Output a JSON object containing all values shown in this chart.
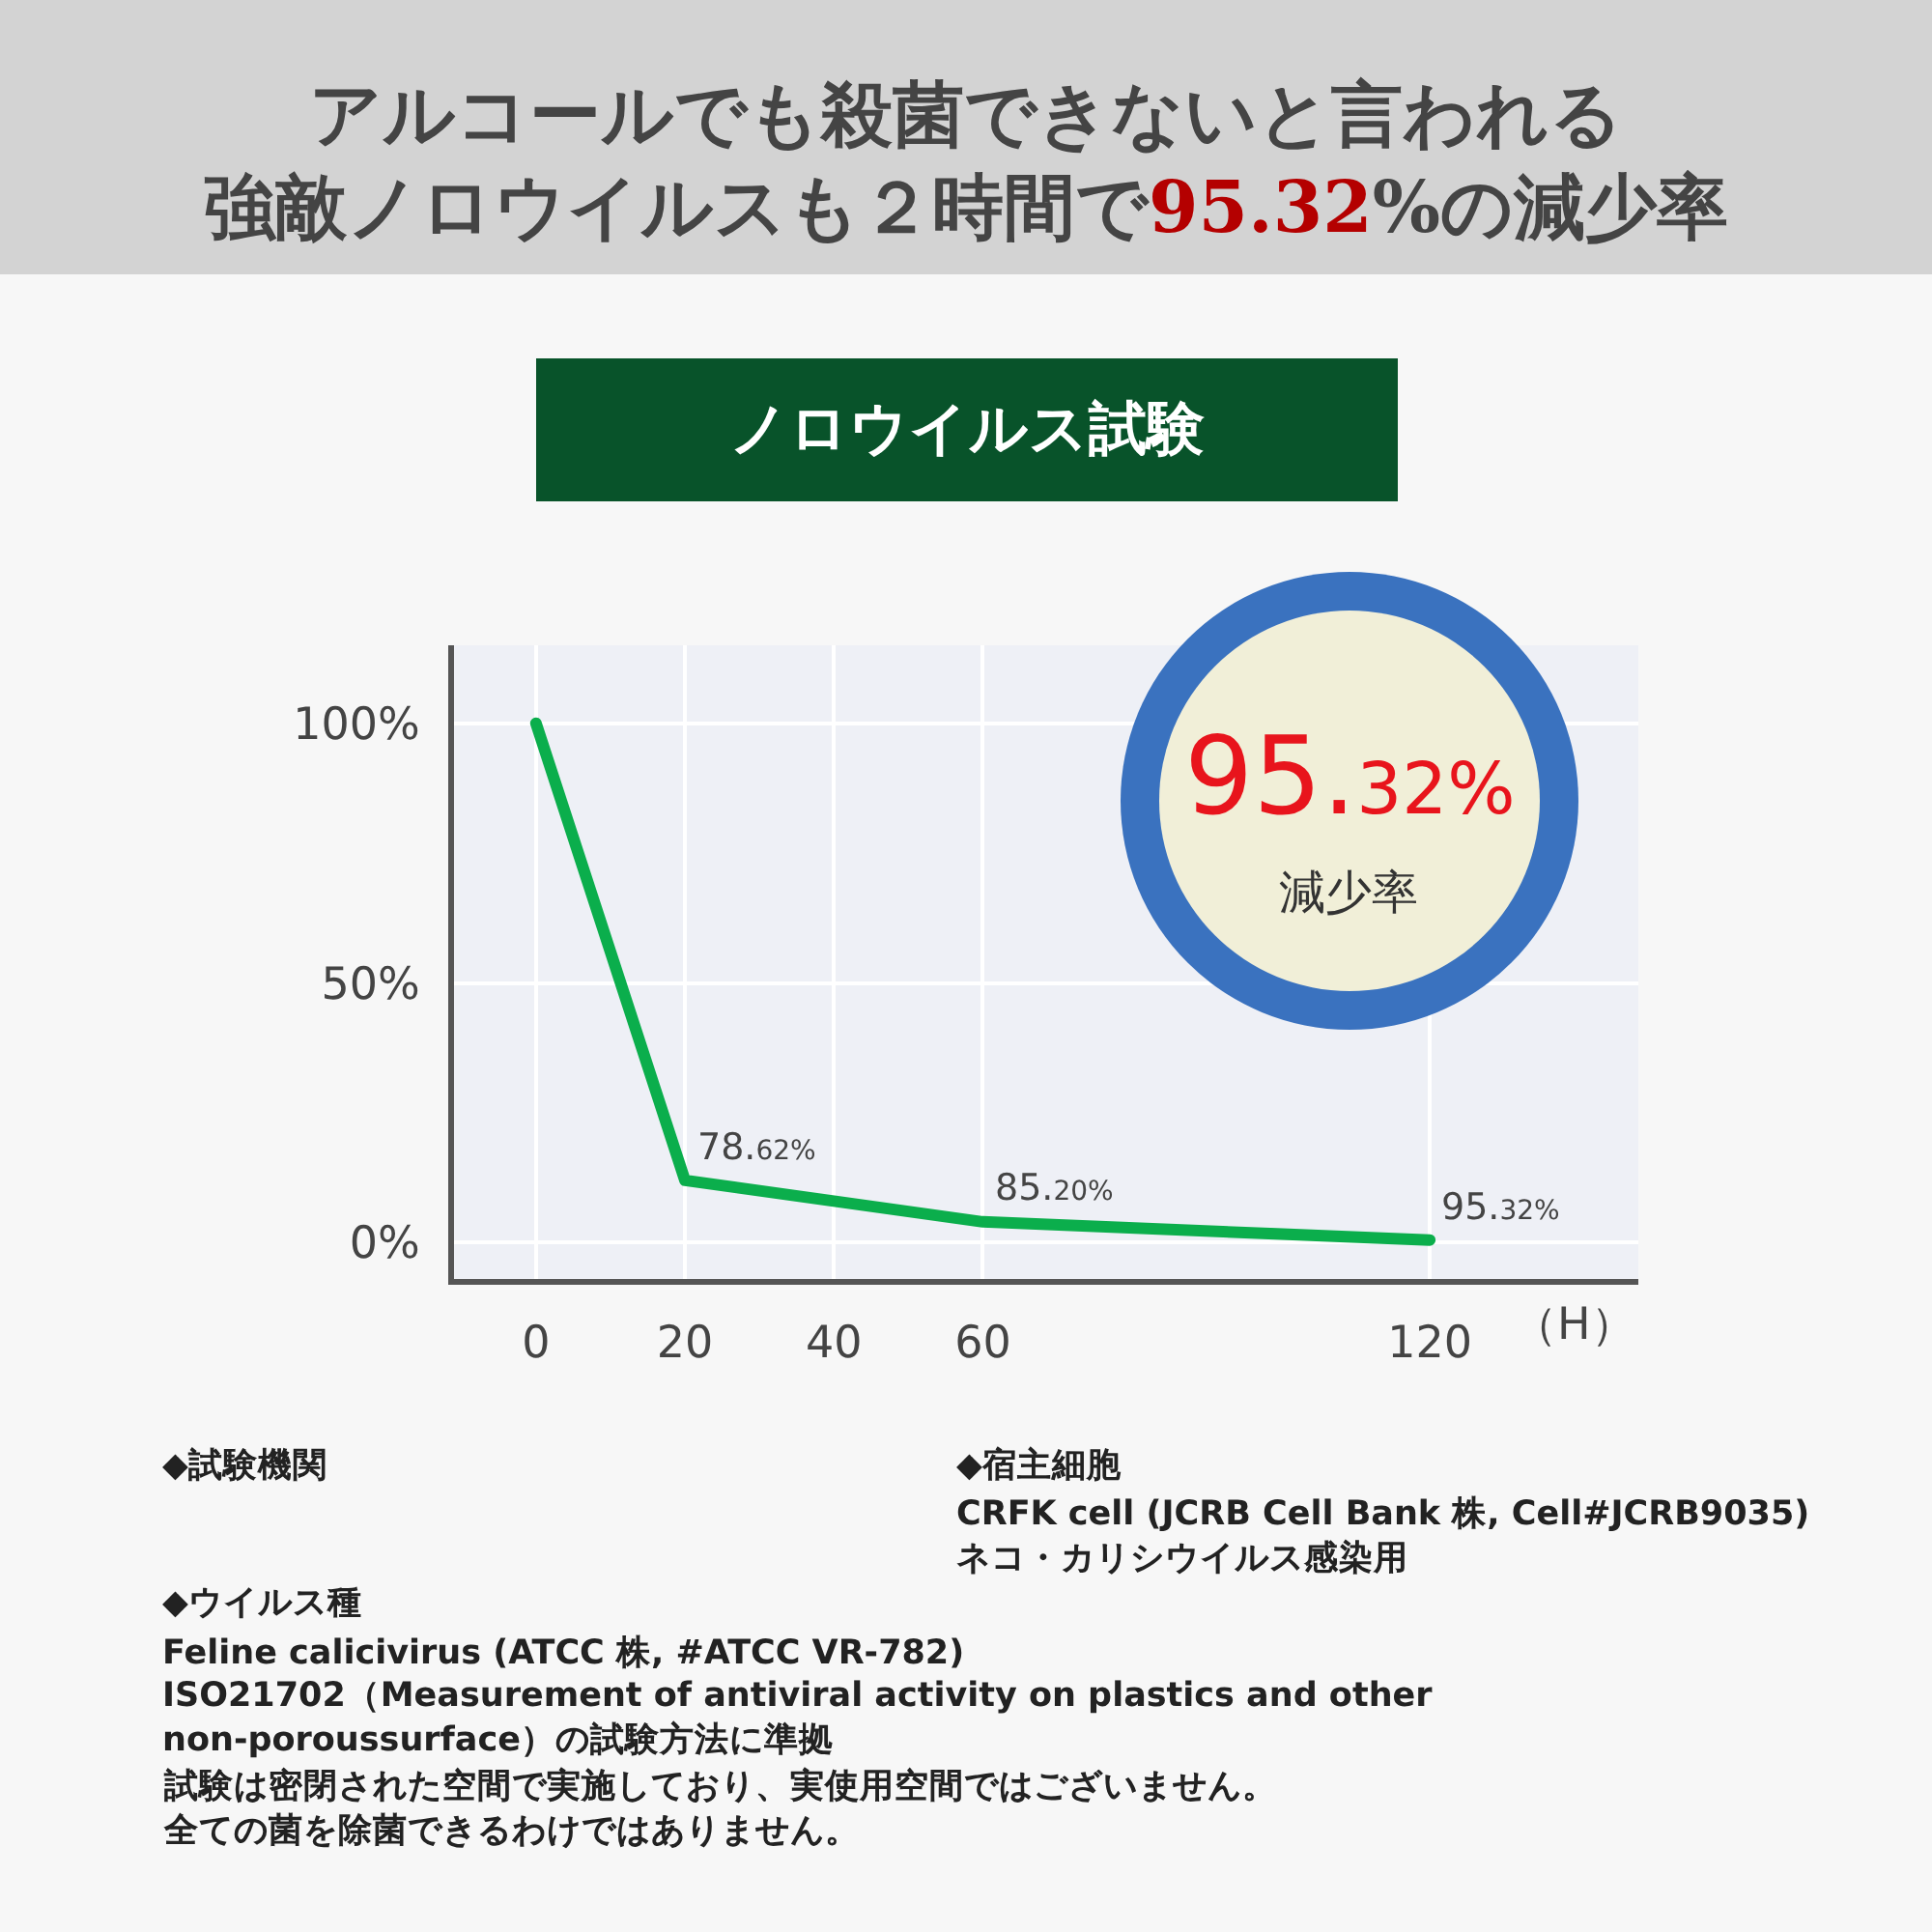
{
  "chart_data": {
    "type": "line",
    "title": "アルコールでも殺菌できないと言われる強敵ノロウイルスも２時間で95.32%の減少率",
    "subtitle": "ノロウイルス試験",
    "xlabel": "（H）",
    "x": [
      0,
      20,
      60,
      120
    ],
    "series": [
      {
        "color": "#0bae4c",
        "values": [
          100,
          12,
          4,
          0.5
        ]
      }
    ],
    "xlim": [
      -11,
      148
    ],
    "xticks": [
      0,
      20,
      40,
      60,
      120
    ],
    "ylim": [
      -7,
      115
    ],
    "yticks": [
      {
        "value": 0,
        "label": "0%"
      },
      {
        "value": 50,
        "label": "50%"
      },
      {
        "value": 100,
        "label": "100%"
      }
    ],
    "grid": true,
    "marker": "none",
    "line_style": "solid",
    "annotations": [
      "◆試験機関",
      "◆宿主細胞",
      "CRFK cell (JCRB Cell Bank 株, Cell#JCRB9035)",
      "ネコ・カリシウイルス感染用",
      "◆ウイルス種",
      "Feline calicivirus (ATCC 株, #ATCC VR-782)",
      "ISO21702（Measurement of antiviral activity on plastics and other\nnon-poroussurface）の試験方法に準拠",
      "試験は密閉された空間で実施しており、実使用空間ではございません。",
      "全ての菌を除菌できるわけではありません。",
      "95.32%",
      "減少率",
      {
        "text": "78.62%",
        "x": 20,
        "y": 12
      },
      {
        "text": "85.20%",
        "x": 60,
        "y": 4
      },
      {
        "text": "95.32%",
        "x": 120,
        "y": 0.5
      }
    ]
  }
}
